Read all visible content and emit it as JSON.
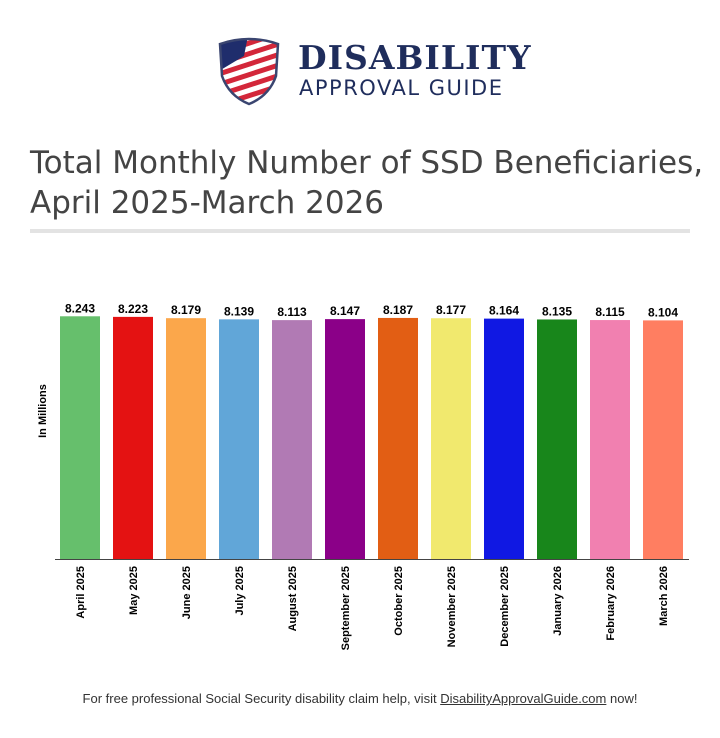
{
  "logo": {
    "line1": "DISABILITY",
    "line2": "APPROVAL GUIDE"
  },
  "title": "Total Monthly Number of SSD Beneficiaries, April 2025-March 2026",
  "chart_data": {
    "type": "bar",
    "title": "Total Monthly Number of SSD Beneficiaries, April 2025-March 2026",
    "ylabel": "In Millions",
    "xlabel": "",
    "ylim": [
      0,
      9
    ],
    "grid": false,
    "categories": [
      "April 2025",
      "May 2025",
      "June 2025",
      "July 2025",
      "August 2025",
      "September 2025",
      "October 2025",
      "November 2025",
      "December 2025",
      "January 2026",
      "February 2026",
      "March 2026"
    ],
    "values": [
      8.243,
      8.223,
      8.179,
      8.139,
      8.113,
      8.147,
      8.187,
      8.177,
      8.164,
      8.135,
      8.115,
      8.104
    ],
    "colors": [
      "#66bf6c",
      "#e41212",
      "#fba74b",
      "#61a6d8",
      "#b17ab4",
      "#8b0088",
      "#e25e14",
      "#f1e96e",
      "#1018e3",
      "#18861b",
      "#f180b0",
      "#ff7e61"
    ]
  },
  "footer": {
    "text_before": "For free professional Social Security disability claim help, visit ",
    "link": "DisabilityApprovalGuide.com",
    "text_after": " now!"
  }
}
